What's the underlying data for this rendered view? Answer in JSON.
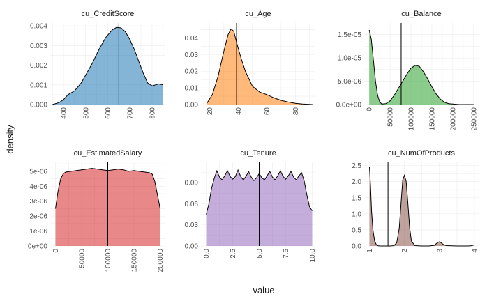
{
  "figure": {
    "xlabel": "value",
    "ylabel": "density"
  },
  "chart_data": [
    {
      "type": "area",
      "title": "cu_CreditScore",
      "color": "#1f77b4",
      "xlim": [
        340,
        860
      ],
      "ylim": [
        0,
        0.00415
      ],
      "xticks": [
        400,
        500,
        600,
        700,
        800
      ],
      "xtick_labels": [
        "400",
        "500",
        "600",
        "700",
        "800"
      ],
      "yticks": [
        0,
        0.001,
        0.002,
        0.003,
        0.004
      ],
      "ytick_labels": [
        "0.000",
        "0.001",
        "0.002",
        "0.003",
        "0.004"
      ],
      "vline": 650,
      "x": [
        350,
        380,
        400,
        420,
        450,
        480,
        500,
        530,
        560,
        590,
        620,
        640,
        660,
        680,
        700,
        720,
        740,
        760,
        780,
        800,
        815,
        830,
        850
      ],
      "y": [
        0,
        0.0001,
        0.00025,
        0.0005,
        0.0007,
        0.0011,
        0.0015,
        0.0021,
        0.0028,
        0.0034,
        0.0038,
        0.00393,
        0.0039,
        0.0037,
        0.0033,
        0.0028,
        0.0022,
        0.0016,
        0.0011,
        0.00095,
        0.001,
        0.00105,
        0.001
      ]
    },
    {
      "type": "area",
      "title": "cu_Age",
      "color": "#ff7f0e",
      "xlim": [
        14,
        94
      ],
      "ylim": [
        0,
        0.049
      ],
      "xticks": [
        20,
        40,
        60,
        80
      ],
      "xtick_labels": [
        "20",
        "40",
        "60",
        "80"
      ],
      "yticks": [
        0,
        0.01,
        0.02,
        0.03,
        0.04
      ],
      "ytick_labels": [
        "0.00",
        "0.01",
        "0.02",
        "0.03",
        "0.04"
      ],
      "vline": 38.9,
      "x": [
        18,
        22,
        26,
        30,
        33,
        35,
        37,
        39,
        42,
        45,
        50,
        55,
        60,
        65,
        70,
        75,
        80,
        85,
        92
      ],
      "y": [
        0.0005,
        0.006,
        0.017,
        0.032,
        0.042,
        0.0455,
        0.044,
        0.037,
        0.028,
        0.02,
        0.011,
        0.0075,
        0.006,
        0.004,
        0.0025,
        0.0015,
        0.0007,
        0.0003,
        0
      ]
    },
    {
      "type": "area",
      "title": "cu_Balance",
      "color": "#2ca02c",
      "xlim": [
        -12000,
        262000
      ],
      "ylim": [
        0,
        1.75e-05
      ],
      "xticks": [
        0,
        50000,
        100000,
        150000,
        200000,
        250000
      ],
      "xtick_labels": [
        "0",
        "50000",
        "100000",
        "150000",
        "200000",
        "250000"
      ],
      "yticks": [
        0,
        5e-06,
        1e-05,
        1.5e-05
      ],
      "ytick_labels": [
        "0.0e+00",
        "5.0e-06",
        "1.0e-05",
        "1.5e-05"
      ],
      "vline": 76500,
      "x": [
        0,
        5000,
        10000,
        15000,
        20000,
        25000,
        30000,
        40000,
        50000,
        60000,
        70000,
        80000,
        90000,
        100000,
        110000,
        120000,
        130000,
        140000,
        150000,
        160000,
        170000,
        180000,
        190000,
        200000,
        215000,
        230000,
        250000
      ],
      "y": [
        1.6e-05,
        1.4e-05,
        9.5e-06,
        5e-06,
        2e-06,
        6e-07,
        1e-07,
        2e-07,
        8e-07,
        2e-06,
        3.5e-06,
        5e-06,
        6.5e-06,
        7.8e-06,
        8.4e-06,
        8.2e-06,
        7e-06,
        5.5e-06,
        3.8e-06,
        2.3e-06,
        1.2e-06,
        5e-07,
        2e-07,
        1e-07,
        0,
        0,
        0
      ]
    },
    {
      "type": "area",
      "title": "cu_EstimatedSalary",
      "color": "#d62728",
      "xlim": [
        -10000,
        210000
      ],
      "ylim": [
        0,
        5.6e-06
      ],
      "xticks": [
        0,
        50000,
        100000,
        150000,
        200000
      ],
      "xtick_labels": [
        "0",
        "50000",
        "100000",
        "150000",
        "200000"
      ],
      "yticks": [
        0,
        1e-06,
        2e-06,
        3e-06,
        4e-06,
        5e-06
      ],
      "ytick_labels": [
        "0e+00",
        "1e-06",
        "2e-06",
        "3e-06",
        "4e-06",
        "5e-06"
      ],
      "vline": 100000,
      "x": [
        0,
        5000,
        10000,
        15000,
        20000,
        30000,
        40000,
        50000,
        60000,
        70000,
        80000,
        90000,
        100000,
        110000,
        120000,
        130000,
        140000,
        150000,
        160000,
        170000,
        180000,
        185000,
        190000,
        195000,
        200000
      ],
      "y": [
        2.5e-06,
        3.7e-06,
        4.5e-06,
        4.85e-06,
        4.95e-06,
        5e-06,
        5.05e-06,
        5.1e-06,
        5.15e-06,
        5.2e-06,
        5.15e-06,
        5.1e-06,
        5.05e-06,
        5.1e-06,
        5.15e-06,
        5.1e-06,
        5e-06,
        5.05e-06,
        5e-06,
        4.95e-06,
        4.9e-06,
        4.8e-06,
        4.3e-06,
        3.4e-06,
        2.5e-06
      ]
    },
    {
      "type": "area",
      "title": "cu_Tenure",
      "color": "#9467bd",
      "xlim": [
        -0.5,
        10.3
      ],
      "ylim": [
        0,
        0.119
      ],
      "xticks": [
        0,
        2.5,
        5,
        7.5,
        10
      ],
      "xtick_labels": [
        "0.0",
        "2.5",
        "5.0",
        "7.5",
        "10.0"
      ],
      "yticks": [
        0,
        0.03,
        0.06,
        0.09
      ],
      "ytick_labels": [
        "0.00",
        "0.03",
        "0.06",
        "0.09"
      ],
      "vline": 5,
      "x": [
        0,
        0.25,
        0.5,
        0.75,
        1,
        1.25,
        1.5,
        1.75,
        2,
        2.25,
        2.5,
        2.75,
        3,
        3.25,
        3.5,
        3.75,
        4,
        4.25,
        4.5,
        4.75,
        5,
        5.25,
        5.5,
        5.75,
        6,
        6.25,
        6.5,
        6.75,
        7,
        7.25,
        7.5,
        7.75,
        8,
        8.25,
        8.5,
        8.75,
        9,
        9.25,
        9.5,
        9.75,
        10
      ],
      "y": [
        0.045,
        0.06,
        0.082,
        0.096,
        0.107,
        0.098,
        0.094,
        0.1,
        0.107,
        0.099,
        0.095,
        0.099,
        0.108,
        0.099,
        0.094,
        0.099,
        0.106,
        0.098,
        0.093,
        0.097,
        0.103,
        0.097,
        0.094,
        0.1,
        0.106,
        0.098,
        0.094,
        0.1,
        0.107,
        0.099,
        0.095,
        0.1,
        0.106,
        0.098,
        0.094,
        0.1,
        0.104,
        0.092,
        0.072,
        0.056,
        0.05
      ]
    },
    {
      "type": "area",
      "title": "cu_NumOfProducts",
      "color": "#8c564b",
      "xlim": [
        0.85,
        4.12
      ],
      "ylim": [
        0,
        2.6
      ],
      "xticks": [
        1,
        2,
        3,
        4
      ],
      "xtick_labels": [
        "1",
        "2",
        "3",
        "4"
      ],
      "yticks": [
        0,
        0.5,
        1,
        1.5,
        2,
        2.5
      ],
      "ytick_labels": [
        "0.0",
        "0.5",
        "1.0",
        "1.5",
        "2.0",
        "2.5"
      ],
      "vline": 1.53,
      "x": [
        1,
        1.03,
        1.06,
        1.1,
        1.15,
        1.2,
        1.25,
        1.3,
        1.4,
        1.6,
        1.7,
        1.78,
        1.85,
        1.9,
        1.95,
        2,
        2.05,
        2.1,
        2.15,
        2.2,
        2.3,
        2.5,
        2.7,
        2.85,
        2.92,
        2.97,
        3,
        3.05,
        3.12,
        3.2,
        3.5,
        3.8,
        3.9,
        3.97,
        4
      ],
      "y": [
        2.45,
        1.9,
        1.1,
        0.5,
        0.15,
        0.03,
        0.005,
        0,
        0,
        0,
        0.01,
        0.1,
        0.55,
        1.3,
        2.05,
        2.2,
        2.0,
        1.3,
        0.55,
        0.15,
        0.01,
        0,
        0,
        0.02,
        0.08,
        0.12,
        0.13,
        0.1,
        0.04,
        0.01,
        0,
        0,
        0.005,
        0.03,
        0.04
      ]
    }
  ]
}
